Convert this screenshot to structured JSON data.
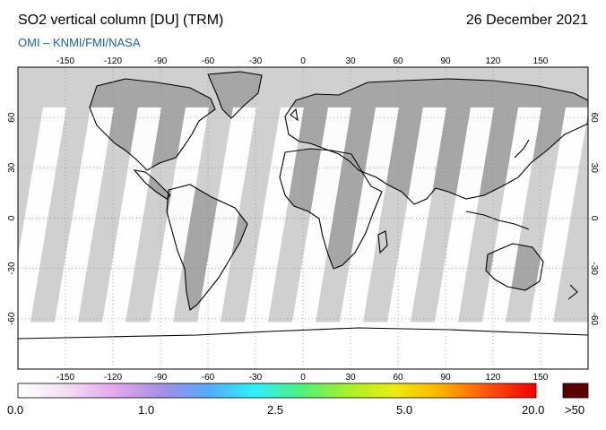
{
  "header": {
    "title": "SO2 vertical column [DU] (TRM)",
    "date": "26 December 2021",
    "source": "OMI  –  KNMI/FMI/NASA"
  },
  "map": {
    "lon_ticks": [
      "-150",
      "-120",
      "-90",
      "-60",
      "-30",
      "0",
      "30",
      "60",
      "90",
      "120",
      "150"
    ],
    "lat_ticks": [
      "60",
      "30",
      "0",
      "-30",
      "-60"
    ],
    "colors": {
      "no_data": "#d0d0d0",
      "land": "#a6a6a6",
      "swath": "#ffffff",
      "coastline": "#000000",
      "grid": "#888888"
    }
  },
  "colorbar": {
    "labels": [
      "0.0",
      "1.0",
      "2.5",
      "5.0",
      "20.0",
      ">50"
    ],
    "gradient": [
      "#ffffff",
      "#f4e0f4",
      "#e6a8ee",
      "#a890e6",
      "#56a8ff",
      "#2cf0ff",
      "#4ff07a",
      "#a8ef2a",
      "#ecec10",
      "#ffb000",
      "#ff5010",
      "#ee0000"
    ],
    "overflow_color": "#5a0000"
  }
}
